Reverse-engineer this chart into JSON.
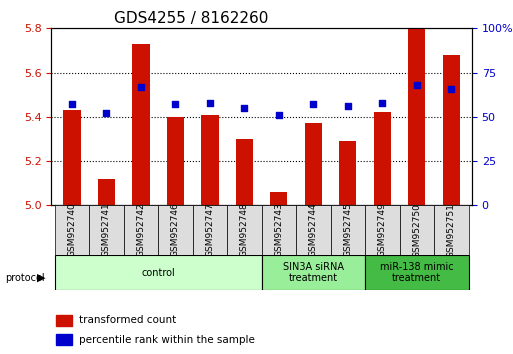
{
  "title": "GDS4255 / 8162260",
  "samples": [
    "GSM952740",
    "GSM952741",
    "GSM952742",
    "GSM952746",
    "GSM952747",
    "GSM952748",
    "GSM952743",
    "GSM952744",
    "GSM952745",
    "GSM952749",
    "GSM952750",
    "GSM952751"
  ],
  "transformed_count": [
    5.43,
    5.12,
    5.73,
    5.4,
    5.41,
    5.3,
    5.06,
    5.37,
    5.29,
    5.42,
    5.8,
    5.68
  ],
  "percentile_rank": [
    57,
    52,
    67,
    57,
    58,
    55,
    51,
    57,
    56,
    58,
    68,
    66
  ],
  "ylim_left": [
    5.0,
    5.8
  ],
  "ylim_right": [
    0,
    100
  ],
  "yticks_left": [
    5.0,
    5.2,
    5.4,
    5.6,
    5.8
  ],
  "yticks_right": [
    0,
    25,
    50,
    75,
    100
  ],
  "ytick_labels_right": [
    "0",
    "25",
    "50",
    "75",
    "100%"
  ],
  "bar_color": "#cc1100",
  "dot_color": "#0000cc",
  "grid_color": "#000000",
  "bg_color": "#ffffff",
  "protocol_groups": [
    {
      "label": "control",
      "start": 0,
      "end": 5,
      "color": "#ccffcc"
    },
    {
      "label": "SIN3A siRNA\ntreatment",
      "start": 6,
      "end": 8,
      "color": "#99ee99"
    },
    {
      "label": "miR-138 mimic\ntreatment",
      "start": 9,
      "end": 11,
      "color": "#44bb44"
    }
  ],
  "legend_items": [
    {
      "label": "transformed count",
      "color": "#cc1100"
    },
    {
      "label": "percentile rank within the sample",
      "color": "#0000cc"
    }
  ],
  "xlabel_color": "#cc1100",
  "ylabel_right_color": "#0000cc",
  "title_fontsize": 11,
  "tick_fontsize": 8,
  "label_fontsize": 8
}
